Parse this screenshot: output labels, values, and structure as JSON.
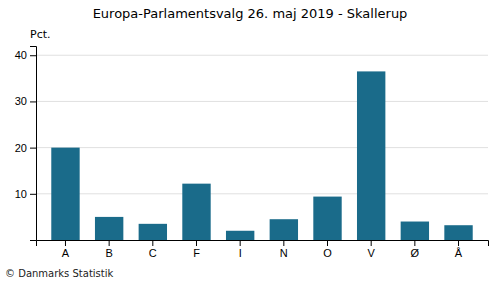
{
  "chart_data": {
    "type": "bar",
    "title": "Europa-Parlamentsvalg 26. maj 2019 - Skallerup",
    "y_label": "Pct.",
    "footer": "© Danmarks Statistik",
    "categories": [
      "A",
      "B",
      "C",
      "F",
      "I",
      "N",
      "O",
      "V",
      "Ø",
      "Å"
    ],
    "values": [
      20.0,
      5.0,
      3.5,
      12.2,
      2.0,
      4.5,
      9.4,
      36.5,
      4.0,
      3.2
    ],
    "color": "#1a6b8a",
    "ylim": [
      0,
      42
    ],
    "yticks": [
      10,
      20,
      30,
      40
    ],
    "grid": true
  }
}
